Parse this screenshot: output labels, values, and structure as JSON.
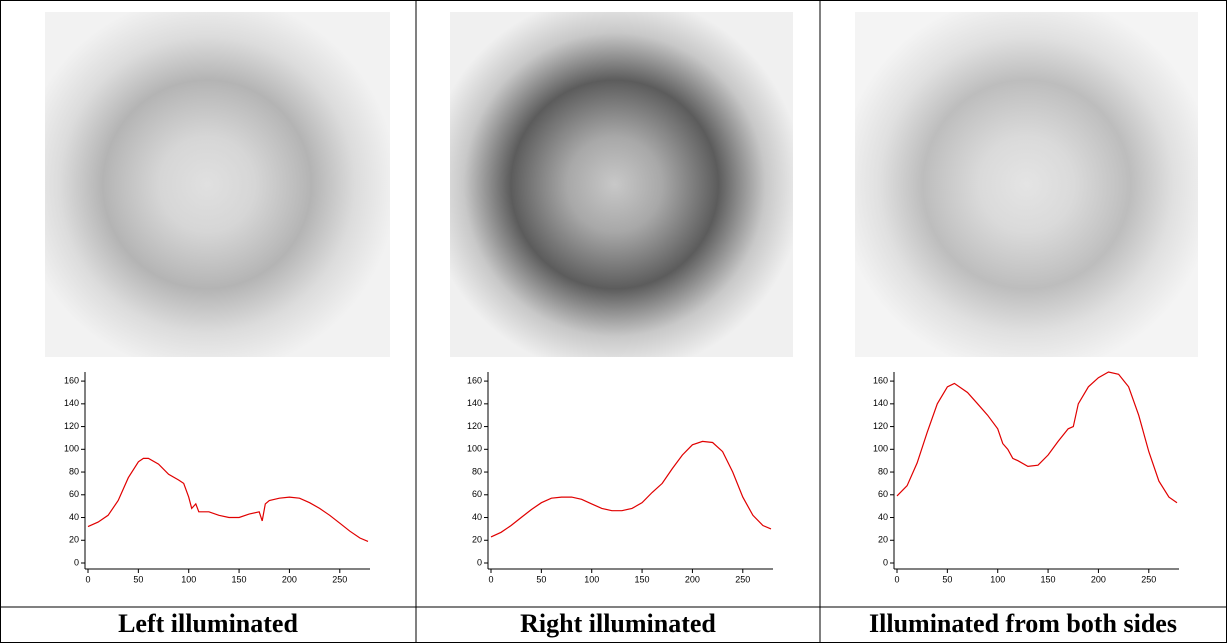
{
  "chart_data": [
    {
      "type": "line",
      "caption": "Left illuminated",
      "color": "#e00000",
      "x": [
        0,
        10,
        20,
        30,
        40,
        50,
        55,
        60,
        70,
        80,
        90,
        95,
        100,
        103,
        107,
        110,
        120,
        130,
        140,
        150,
        160,
        170,
        173,
        176,
        180,
        190,
        200,
        210,
        220,
        230,
        240,
        250,
        260,
        270,
        278
      ],
      "values": [
        32,
        36,
        42,
        55,
        75,
        89,
        92,
        92,
        87,
        78,
        73,
        70,
        58,
        48,
        52,
        45,
        45,
        42,
        40,
        40,
        43,
        45,
        37,
        52,
        55,
        57,
        58,
        57,
        53,
        48,
        42,
        35,
        28,
        22,
        19
      ],
      "xlim": [
        0,
        280
      ],
      "ylim": [
        0,
        168
      ],
      "xticks": [
        0,
        50,
        100,
        150,
        200,
        250
      ],
      "yticks": [
        0,
        20,
        40,
        60,
        80,
        100,
        120,
        140,
        160
      ]
    },
    {
      "type": "line",
      "caption": "Right illuminated",
      "color": "#e00000",
      "x": [
        0,
        10,
        20,
        30,
        40,
        50,
        60,
        70,
        80,
        90,
        100,
        105,
        110,
        120,
        130,
        140,
        150,
        160,
        170,
        180,
        190,
        200,
        210,
        220,
        230,
        240,
        250,
        260,
        270,
        278
      ],
      "values": [
        23,
        27,
        33,
        40,
        47,
        53,
        57,
        58,
        58,
        56,
        52,
        50,
        48,
        46,
        46,
        48,
        53,
        62,
        70,
        83,
        95,
        104,
        107,
        106,
        98,
        80,
        58,
        42,
        33,
        30
      ],
      "xlim": [
        0,
        280
      ],
      "ylim": [
        0,
        168
      ],
      "xticks": [
        0,
        50,
        100,
        150,
        200,
        250
      ],
      "yticks": [
        0,
        20,
        40,
        60,
        80,
        100,
        120,
        140,
        160
      ]
    },
    {
      "type": "line",
      "caption": "Illuminated from both sides",
      "color": "#e00000",
      "x": [
        0,
        10,
        20,
        30,
        40,
        50,
        57,
        70,
        80,
        90,
        100,
        105,
        110,
        115,
        120,
        130,
        140,
        150,
        160,
        170,
        175,
        180,
        190,
        200,
        210,
        220,
        230,
        240,
        250,
        260,
        270,
        278
      ],
      "values": [
        59,
        68,
        88,
        115,
        140,
        155,
        158,
        150,
        140,
        130,
        118,
        105,
        100,
        92,
        90,
        85,
        86,
        95,
        107,
        118,
        120,
        140,
        155,
        163,
        168,
        166,
        155,
        130,
        98,
        72,
        58,
        53
      ],
      "xlim": [
        0,
        280
      ],
      "ylim": [
        0,
        168
      ],
      "xticks": [
        0,
        50,
        100,
        150,
        200,
        250
      ],
      "yticks": [
        0,
        20,
        40,
        60,
        80,
        100,
        120,
        140,
        160
      ]
    }
  ]
}
